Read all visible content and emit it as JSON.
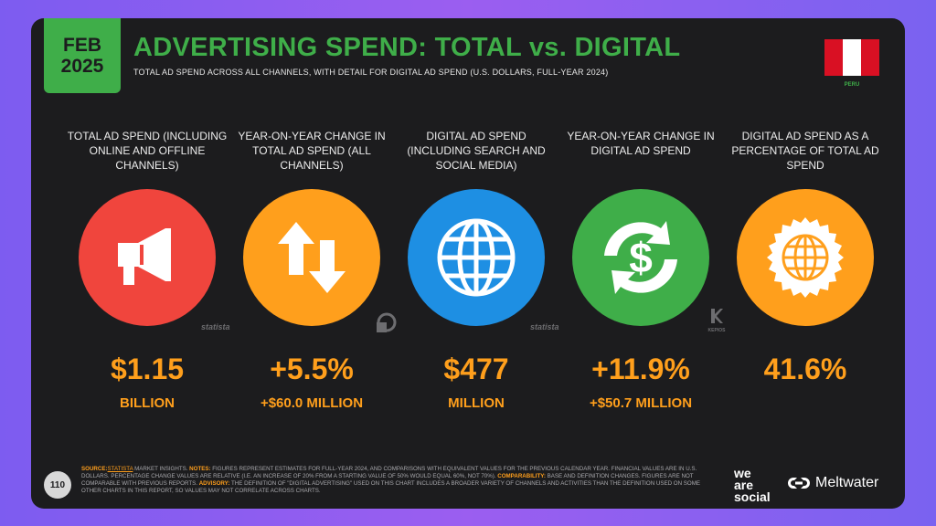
{
  "header": {
    "month": "FEB",
    "year": "2025",
    "title": "ADVERTISING SPEND: TOTAL vs. DIGITAL",
    "subtitle": "TOTAL AD SPEND ACROSS ALL CHANNELS, WITH DETAIL FOR DIGITAL AD SPEND (U.S. DOLLARS, FULL-YEAR 2024)",
    "country": "PERU"
  },
  "colors": {
    "green": "#3fae49",
    "orange": "#ff9f1c",
    "red": "#f0453d",
    "blue": "#1e8fe3"
  },
  "stats": [
    {
      "label": "TOTAL AD SPEND (INCLUDING ONLINE AND OFFLINE CHANNELS)",
      "value": "$1.15",
      "unit": "BILLION",
      "icon": "megaphone-icon",
      "color": "#f0453d"
    },
    {
      "label": "YEAR-ON-YEAR CHANGE IN TOTAL AD SPEND (ALL CHANNELS)",
      "value": "+5.5%",
      "unit": "+$60.0 MILLION",
      "icon": "up-down-arrows-icon",
      "color": "#ff9f1c"
    },
    {
      "label": "DIGITAL AD SPEND (INCLUDING SEARCH AND SOCIAL MEDIA)",
      "value": "$477",
      "unit": "MILLION",
      "icon": "globe-icon",
      "color": "#1e8fe3"
    },
    {
      "label": "YEAR-ON-YEAR CHANGE IN DIGITAL AD SPEND",
      "value": "+11.9%",
      "unit": "+$50.7 MILLION",
      "icon": "dollar-cycle-icon",
      "color": "#3fae49"
    },
    {
      "label": "DIGITAL AD SPEND AS A PERCENTAGE OF TOTAL AD SPEND",
      "value": "41.6%",
      "unit": "",
      "icon": "globe-badge-icon",
      "color": "#ff9f1c"
    }
  ],
  "source_logos": {
    "statista": "statista",
    "kepios": "KEPIOS"
  },
  "footer": {
    "page_number": "110",
    "source_label": "SOURCE:",
    "source_link": "STATISTA",
    "source_text": " MARKET INSIGHTS. ",
    "notes_label": "NOTES:",
    "notes_text": " FIGURES REPRESENT ESTIMATES FOR FULL-YEAR 2024, AND COMPARISONS WITH EQUIVALENT VALUES FOR THE PREVIOUS CALENDAR YEAR. FINANCIAL VALUES ARE IN U.S. DOLLARS. PERCENTAGE CHANGE VALUES ARE RELATIVE (I.E. AN INCREASE OF 20% FROM A STARTING VALUE OF 50% WOULD EQUAL 60%, NOT 70%). ",
    "comparability_label": "COMPARABILITY:",
    "comparability_text": " BASE AND DEFINITION CHANGES. FIGURES ARE NOT COMPARABLE WITH PREVIOUS REPORTS. ",
    "advisory_label": "ADVISORY:",
    "advisory_text": " THE DEFINITION OF \"DIGITAL ADVERTISING\" USED ON THIS CHART INCLUDES A BROADER VARIETY OF CHANNELS AND ACTIVITIES THAN THE DEFINITION USED ON SOME OTHER CHARTS IN THIS REPORT, SO VALUES MAY NOT CORRELATE ACROSS CHARTS.",
    "brand_line1": "we",
    "brand_line2": "are",
    "brand_line3": "social",
    "brand_meltwater": "Meltwater"
  }
}
